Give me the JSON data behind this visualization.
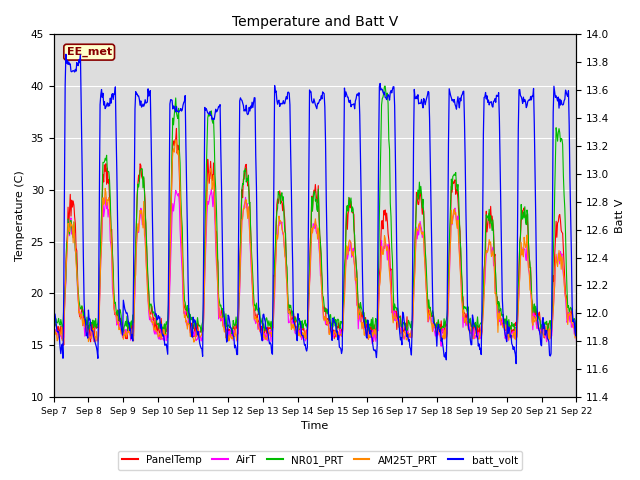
{
  "title": "Temperature and Batt V",
  "xlabel": "Time",
  "ylabel_left": "Temperature (C)",
  "ylabel_right": "Batt V",
  "annotation_text": "EE_met",
  "ylim_left": [
    10,
    45
  ],
  "ylim_right": [
    11.4,
    14.0
  ],
  "yticks_left": [
    10,
    15,
    20,
    25,
    30,
    35,
    40,
    45
  ],
  "yticks_right": [
    11.4,
    11.6,
    11.8,
    12.0,
    12.2,
    12.4,
    12.6,
    12.8,
    13.0,
    13.2,
    13.4,
    13.6,
    13.8,
    14.0
  ],
  "date_labels": [
    "Sep 7",
    "Sep 8",
    "Sep 9",
    "Sep 10",
    "Sep 11",
    "Sep 12",
    "Sep 13",
    "Sep 14",
    "Sep 15",
    "Sep 16",
    "Sep 17",
    "Sep 18",
    "Sep 19",
    "Sep 20",
    "Sep 21",
    "Sep 22"
  ],
  "legend_entries": [
    {
      "label": "PanelTemp",
      "color": "#FF0000"
    },
    {
      "label": "AirT",
      "color": "#FF00FF"
    },
    {
      "label": "NR01_PRT",
      "color": "#00BB00"
    },
    {
      "label": "AM25T_PRT",
      "color": "#FF8800"
    },
    {
      "label": "batt_volt",
      "color": "#0000FF"
    }
  ],
  "background_color": "#ffffff",
  "plot_bg_color": "#dddddd",
  "grid_color": "#ffffff",
  "annotation_bg": "#ffffcc",
  "annotation_border": "#880000"
}
